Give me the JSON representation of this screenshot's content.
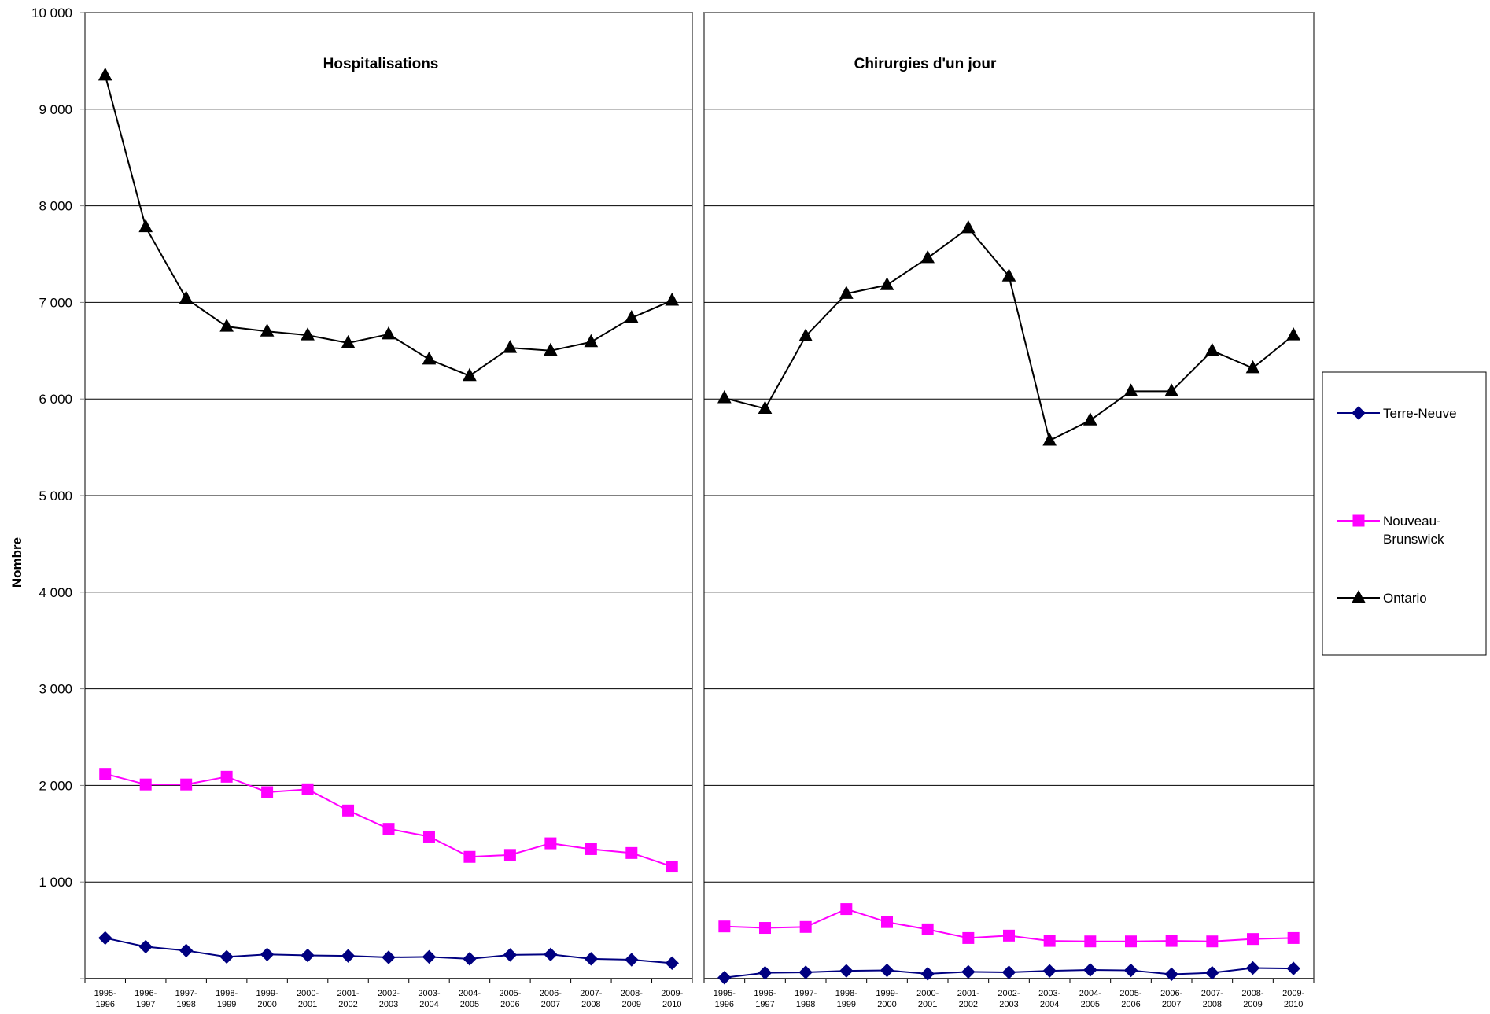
{
  "chart_data": {
    "type": "line",
    "ylabel": "Nombre",
    "ylim": [
      0,
      10000
    ],
    "yticks": [
      "1 000",
      "2 000",
      "3 000",
      "4 000",
      "5 000",
      "6 000",
      "7 000",
      "8 000",
      "9 000",
      "10 000"
    ],
    "grid": true,
    "legend_position": "right",
    "x": [
      "1995-1996",
      "1996-1997",
      "1997-1998",
      "1998-1999",
      "1999-2000",
      "2000-2001",
      "2001-2002",
      "2002-2003",
      "2003-2004",
      "2004-2005",
      "2005-2006",
      "2006-2007",
      "2007-2008",
      "2008-2009",
      "2009-2010"
    ],
    "series_styles": [
      {
        "name": "Terre-Neuve",
        "color": "#000080",
        "marker": "diamond"
      },
      {
        "name": "Nouveau-Brunswick",
        "color": "#ff00ff",
        "marker": "square"
      },
      {
        "name": "Ontario",
        "color": "#000000",
        "marker": "triangle"
      }
    ],
    "panels": [
      {
        "title": "Hospitalisations",
        "series": [
          {
            "name": "Terre-Neuve",
            "values": [
              420,
              330,
              290,
              225,
              250,
              240,
              235,
              220,
              225,
              205,
              245,
              250,
              205,
              195,
              160
            ]
          },
          {
            "name": "Nouveau-Brunswick",
            "values": [
              2120,
              2010,
              2010,
              2090,
              1930,
              1960,
              1740,
              1550,
              1470,
              1260,
              1280,
              1400,
              1340,
              1300,
              1160
            ]
          },
          {
            "name": "Ontario",
            "values": [
              9350,
              7780,
              7040,
              6750,
              6700,
              6660,
              6580,
              6670,
              6410,
              6240,
              6530,
              6500,
              6590,
              6840,
              7020
            ]
          }
        ]
      },
      {
        "title": "Chirurgies d'un jour",
        "series": [
          {
            "name": "Terre-Neuve",
            "values": [
              10,
              60,
              65,
              80,
              85,
              50,
              70,
              65,
              80,
              90,
              85,
              45,
              60,
              110,
              105
            ]
          },
          {
            "name": "Nouveau-Brunswick",
            "values": [
              540,
              525,
              535,
              720,
              585,
              510,
              420,
              445,
              390,
              385,
              385,
              390,
              385,
              410,
              420
            ]
          },
          {
            "name": "Ontario",
            "values": [
              6010,
              5900,
              6650,
              7090,
              7180,
              7460,
              7770,
              7270,
              5570,
              5780,
              6080,
              6080,
              6500,
              6320,
              6660
            ]
          }
        ]
      }
    ]
  }
}
